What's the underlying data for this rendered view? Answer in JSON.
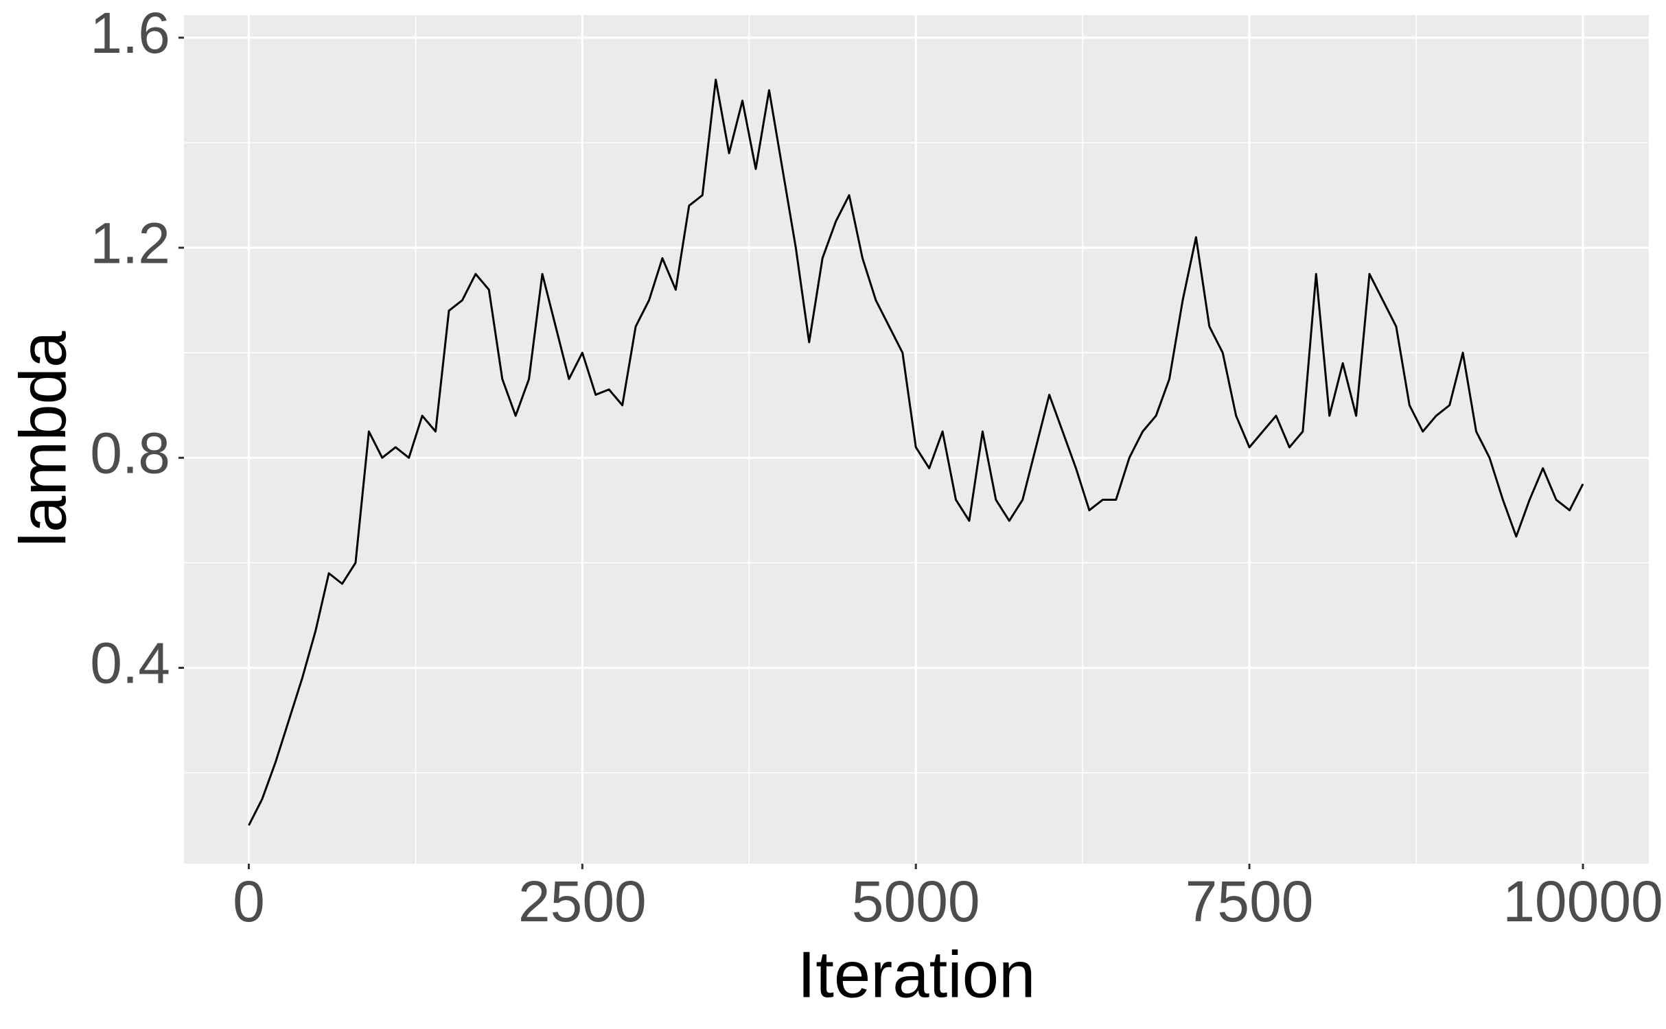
{
  "chart_data": {
    "type": "line",
    "x_label": "Iteration",
    "y_label": "lambda",
    "x": [
      0,
      100,
      200,
      300,
      400,
      500,
      600,
      700,
      800,
      900,
      1000,
      1100,
      1200,
      1300,
      1400,
      1500,
      1600,
      1700,
      1800,
      1900,
      2000,
      2100,
      2200,
      2300,
      2400,
      2500,
      2600,
      2700,
      2800,
      2900,
      3000,
      3100,
      3200,
      3300,
      3400,
      3500,
      3600,
      3700,
      3800,
      3900,
      4000,
      4100,
      4200,
      4300,
      4400,
      4500,
      4600,
      4700,
      4800,
      4900,
      5000,
      5100,
      5200,
      5300,
      5400,
      5500,
      5600,
      5700,
      5800,
      5900,
      6000,
      6100,
      6200,
      6300,
      6400,
      6500,
      6600,
      6700,
      6800,
      6900,
      7000,
      7100,
      7200,
      7300,
      7400,
      7500,
      7600,
      7700,
      7800,
      7900,
      8000,
      8100,
      8200,
      8300,
      8400,
      8500,
      8600,
      8700,
      8800,
      8900,
      9000,
      9100,
      9200,
      9300,
      9400,
      9500,
      9600,
      9700,
      9800,
      9900,
      10000
    ],
    "series": [
      {
        "color": "#000000",
        "values": [
          0.1,
          0.15,
          0.22,
          0.3,
          0.38,
          0.47,
          0.58,
          0.56,
          0.6,
          0.85,
          0.8,
          0.82,
          0.8,
          0.88,
          0.85,
          1.08,
          1.1,
          1.15,
          1.12,
          0.95,
          0.88,
          0.95,
          1.15,
          1.05,
          0.95,
          1.0,
          0.92,
          0.93,
          0.9,
          1.05,
          1.1,
          1.18,
          1.12,
          1.28,
          1.3,
          1.52,
          1.38,
          1.48,
          1.35,
          1.5,
          1.35,
          1.2,
          1.02,
          1.18,
          1.25,
          1.3,
          1.18,
          1.1,
          1.05,
          1.0,
          0.82,
          0.78,
          0.85,
          0.72,
          0.68,
          0.85,
          0.72,
          0.68,
          0.72,
          0.82,
          0.92,
          0.85,
          0.78,
          0.7,
          0.72,
          0.72,
          0.8,
          0.85,
          0.88,
          0.95,
          1.1,
          1.22,
          1.05,
          1.0,
          0.88,
          0.82,
          0.85,
          0.88,
          0.82,
          0.85,
          1.15,
          0.88,
          0.98,
          0.88,
          1.15,
          1.1,
          1.05,
          0.9,
          0.85,
          0.88,
          0.9,
          1.0,
          0.85,
          0.8,
          0.72,
          0.65,
          0.72,
          0.78,
          0.72,
          0.7,
          0.75
        ]
      }
    ],
    "xlim": [
      -486,
      10494
    ],
    "ylim": [
      0.027,
      1.643
    ],
    "xticks": [
      0,
      2500,
      5000,
      7500,
      10000
    ],
    "yticks": [
      0.4,
      0.8,
      1.2,
      1.6
    ],
    "minor_xticks": [
      1250,
      3750,
      6250,
      8750
    ],
    "minor_yticks": [
      0.2,
      0.6,
      1.0,
      1.4
    ],
    "grid": true,
    "background": "#ebebeb"
  }
}
